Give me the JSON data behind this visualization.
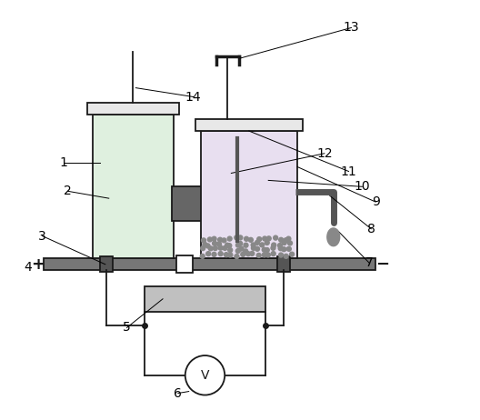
{
  "bg_color": "#ffffff",
  "line_color": "#1a1a1a",
  "gray_dark": "#555555",
  "gray_mid": "#888888",
  "gray_light": "#cccccc",
  "fill_left": "#dff0df",
  "fill_right": "#e8dff0",
  "fill_membrane": "#666666",
  "fill_cap": "#e8e8e8",
  "fill_resistor": "#c0c0c0",
  "fill_base": "#777777"
}
